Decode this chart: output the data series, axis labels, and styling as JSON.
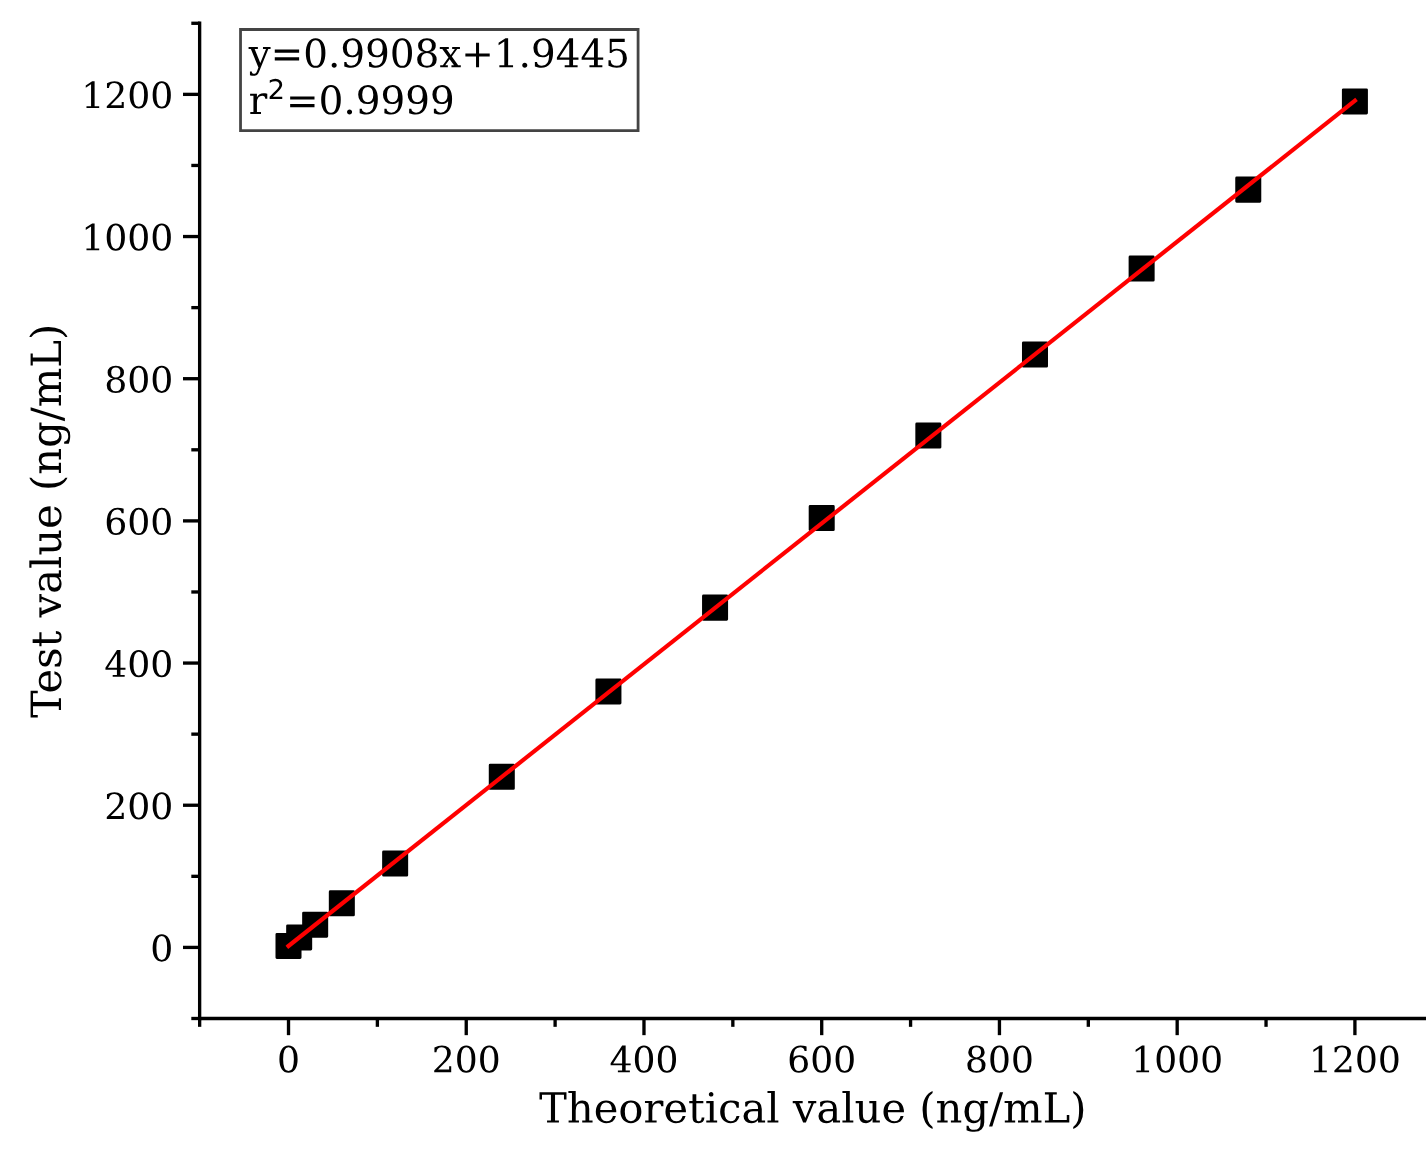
{
  "chart_data": {
    "type": "scatter",
    "xlabel": "Theoretical value (ng/mL)",
    "ylabel": "Test value (ng/mL)",
    "annotations": [
      "y=0.9908x+1.9445\nr$^{2}$=0.9999"
    ],
    "series": [
      {
        "color": "#000000",
        "marker": "square",
        "x": [
          0,
          12,
          30,
          60,
          120,
          240,
          360,
          480,
          600,
          720,
          840,
          960,
          1080,
          1200
        ],
        "values": [
          2,
          14,
          32,
          62,
          118,
          240,
          360,
          478,
          604,
          720,
          834,
          955,
          1066,
          1190
        ]
      },
      {
        "type": "line",
        "color": "#ff0000",
        "marker": "none",
        "line_style": "solid",
        "x": [
          0,
          1200
        ],
        "values": [
          2,
          1191
        ]
      }
    ],
    "xlim": [
      -100,
      1280
    ],
    "ylim": [
      -100,
      1300
    ],
    "xticks": [
      0,
      200,
      400,
      600,
      800,
      1000,
      1200
    ],
    "yticks": [
      0,
      200,
      400,
      600,
      800,
      1000,
      1200
    ],
    "grid": false
  }
}
